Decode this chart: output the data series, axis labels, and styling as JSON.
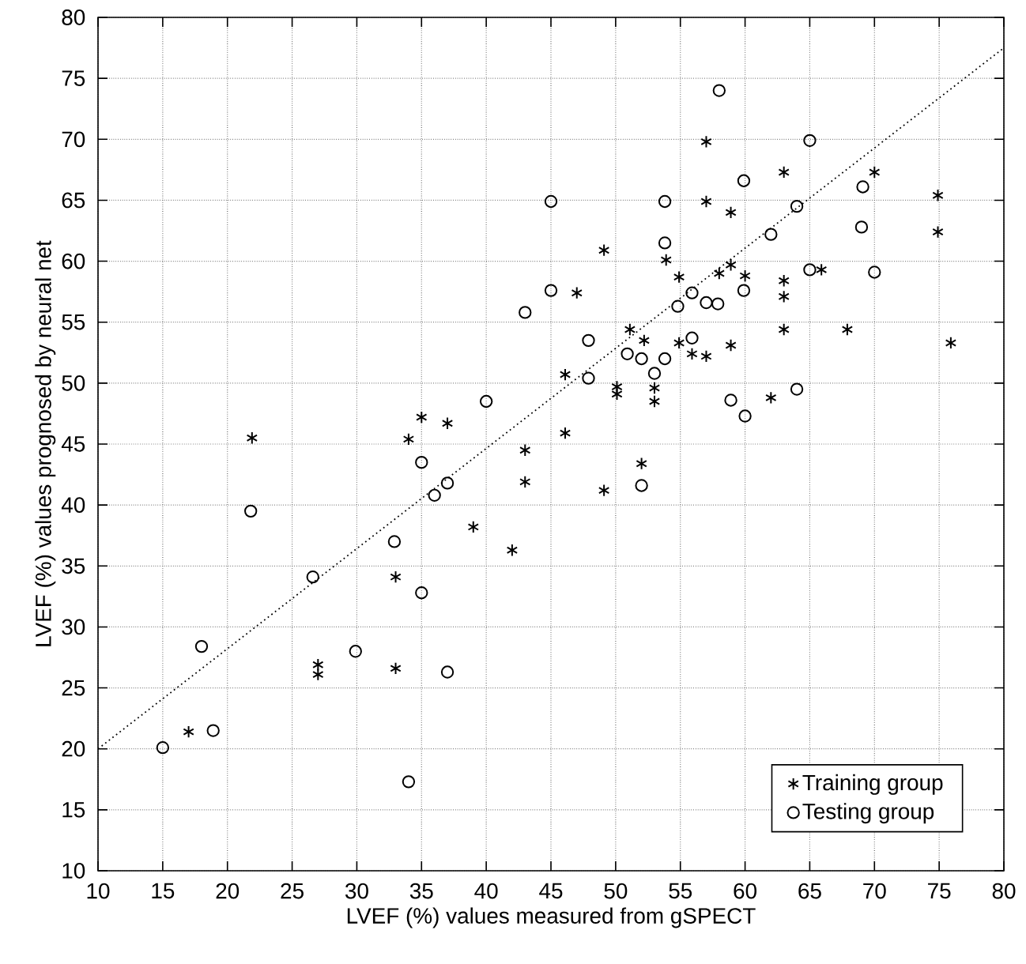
{
  "chart_data": {
    "type": "scatter",
    "xlabel": "LVEF (%) values measured from gSPECT",
    "ylabel": "LVEF (%) values prognosed by neural net",
    "xlim": [
      10,
      80
    ],
    "ylim": [
      10,
      80
    ],
    "xticks": [
      10,
      15,
      20,
      25,
      30,
      35,
      40,
      45,
      50,
      55,
      60,
      65,
      70,
      75,
      80
    ],
    "yticks": [
      10,
      15,
      20,
      25,
      30,
      35,
      40,
      45,
      50,
      55,
      60,
      65,
      70,
      75,
      80
    ],
    "grid": true,
    "legend": "bottom right",
    "series": [
      {
        "name": "Training group",
        "color": "#000000",
        "marker": "cross",
        "x": [
          17,
          21.9,
          27,
          27,
          33,
          33,
          34,
          35,
          37,
          39,
          42,
          43,
          43,
          46.1,
          46.1,
          47,
          49.1,
          49.1,
          50.1,
          50.1,
          51.1,
          52.2,
          52,
          53,
          53,
          53.9,
          54.9,
          54.9,
          55.9,
          57,
          57,
          57,
          58,
          58.9,
          58.9,
          58.9,
          60,
          62,
          63,
          63,
          63,
          63,
          65.9,
          67.9,
          70,
          74.9,
          74.9,
          75.9
        ],
        "values": [
          21.4,
          45.5,
          26.9,
          26.1,
          34.1,
          26.6,
          45.4,
          47.2,
          46.7,
          38.2,
          36.3,
          44.5,
          41.9,
          50.7,
          45.9,
          57.4,
          60.9,
          41.2,
          49.7,
          49.1,
          54.4,
          53.5,
          43.4,
          49.6,
          48.5,
          60.1,
          58.7,
          53.3,
          52.4,
          52.2,
          69.8,
          64.9,
          59,
          64,
          59.7,
          53.1,
          58.8,
          48.8,
          67.3,
          58.4,
          57.1,
          54.4,
          59.3,
          54.4,
          67.3,
          65.4,
          62.4,
          53.3
        ]
      },
      {
        "name": "Testing group",
        "color": "#000000",
        "marker": "circle",
        "x": [
          15,
          18,
          18.9,
          21.8,
          26.6,
          29.9,
          32.9,
          34,
          35,
          35,
          36,
          37,
          37,
          40,
          43,
          45,
          45,
          47.9,
          47.9,
          50.9,
          52,
          52,
          53,
          53.8,
          53.8,
          53.8,
          54.8,
          55.9,
          55.9,
          57,
          57.9,
          58,
          58.9,
          59.9,
          59.9,
          60,
          62,
          64,
          64,
          65,
          65,
          69,
          69.1,
          70
        ],
        "values": [
          20.1,
          28.4,
          21.5,
          39.5,
          34.1,
          28,
          37,
          17.3,
          43.5,
          32.8,
          40.8,
          41.8,
          26.3,
          48.5,
          55.8,
          64.9,
          57.6,
          53.5,
          50.4,
          52.4,
          52,
          41.6,
          50.8,
          64.9,
          61.5,
          52,
          56.3,
          57.4,
          53.7,
          56.6,
          56.5,
          74,
          48.6,
          66.6,
          57.6,
          47.3,
          62.2,
          64.5,
          49.5,
          69.9,
          59.3,
          62.8,
          66.1,
          59.1
        ]
      },
      {
        "type": "line",
        "color": "#000000",
        "line_style": "dotted",
        "marker": "none",
        "x": [
          10,
          80
        ],
        "values": [
          20,
          77.5
        ]
      }
    ]
  }
}
